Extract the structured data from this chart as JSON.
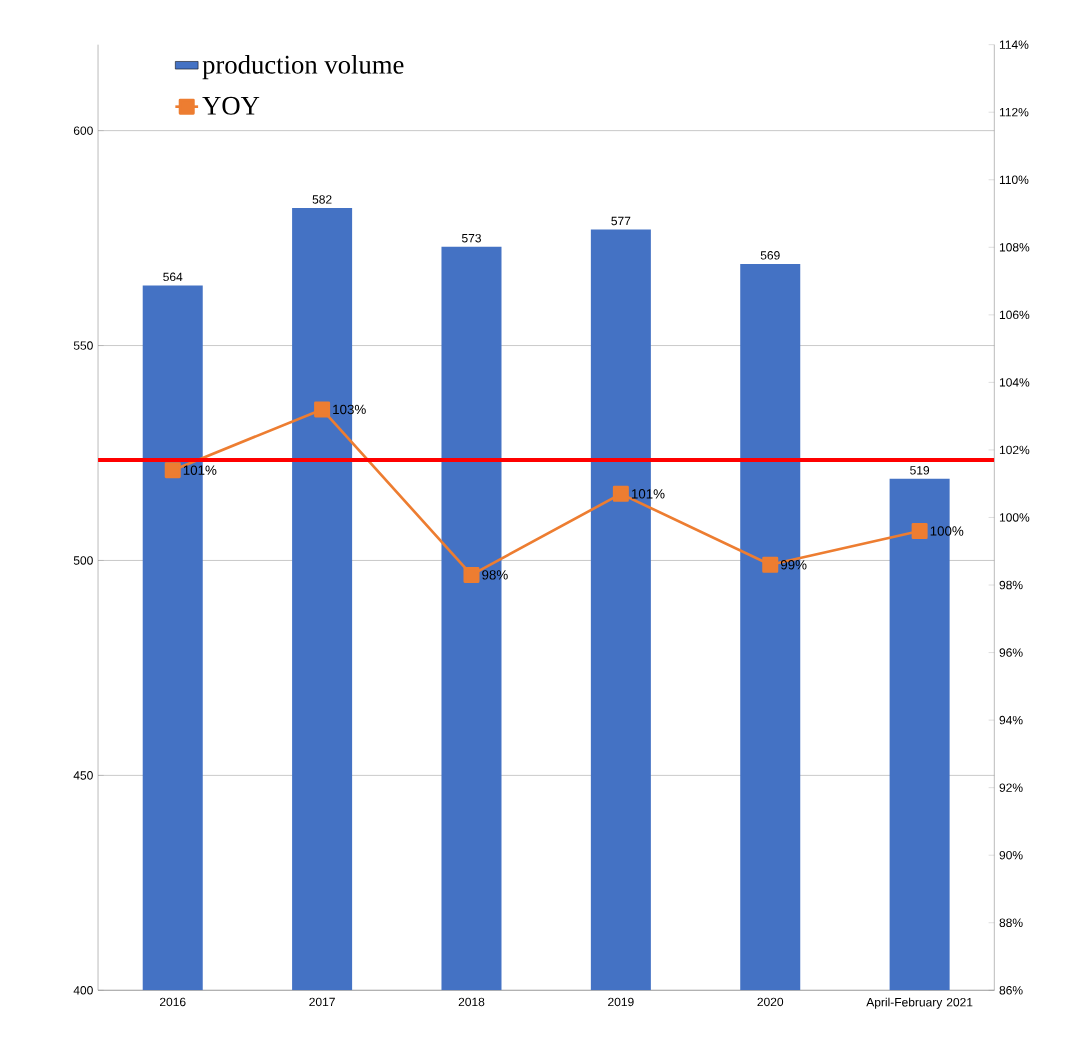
{
  "chart_data": {
    "type": "bar",
    "categories": [
      "2016",
      "2017",
      "2018",
      "2019",
      "2020",
      "April-February 2021"
    ],
    "series": [
      {
        "name": "production volume",
        "color": "#4472c4",
        "values": [
          564,
          582,
          573,
          577,
          569,
          519
        ],
        "value_labels": [
          "564",
          "582",
          "573",
          "577",
          "569",
          "519"
        ]
      },
      {
        "name": "YOY",
        "type": "line",
        "axis": "y2",
        "color": "#ed7d31",
        "values": [
          101.4,
          103.2,
          98.3,
          100.7,
          98.6,
          99.6
        ],
        "value_labels": [
          "101%",
          "103%",
          "98%",
          "101%",
          "99%",
          "100%"
        ]
      }
    ],
    "ylim": [
      400,
      620
    ],
    "yticks": [
      400,
      450,
      500,
      550,
      600
    ],
    "y2lim": [
      86,
      114
    ],
    "y2ticks": [
      {
        "value": 86,
        "label": "86%"
      },
      {
        "value": 88,
        "label": "88%"
      },
      {
        "value": 90,
        "label": "90%"
      },
      {
        "value": 92,
        "label": "92%"
      },
      {
        "value": 94,
        "label": "94%"
      },
      {
        "value": 96,
        "label": "96%"
      },
      {
        "value": 98,
        "label": "98%"
      },
      {
        "value": 100,
        "label": "100%"
      },
      {
        "value": 102,
        "label": "102%"
      },
      {
        "value": 104,
        "label": "104%"
      },
      {
        "value": 106,
        "label": "106%"
      },
      {
        "value": 108,
        "label": "108%"
      },
      {
        "value": 110,
        "label": "110%"
      },
      {
        "value": 112,
        "label": "112%"
      },
      {
        "value": 114,
        "label": "114%"
      }
    ],
    "ref_lines": [
      {
        "axis": "y2",
        "value": 101.7,
        "color": "#ff0000"
      }
    ],
    "grid": "y",
    "legend": "top left",
    "marker": "square",
    "line_style": "solid"
  }
}
